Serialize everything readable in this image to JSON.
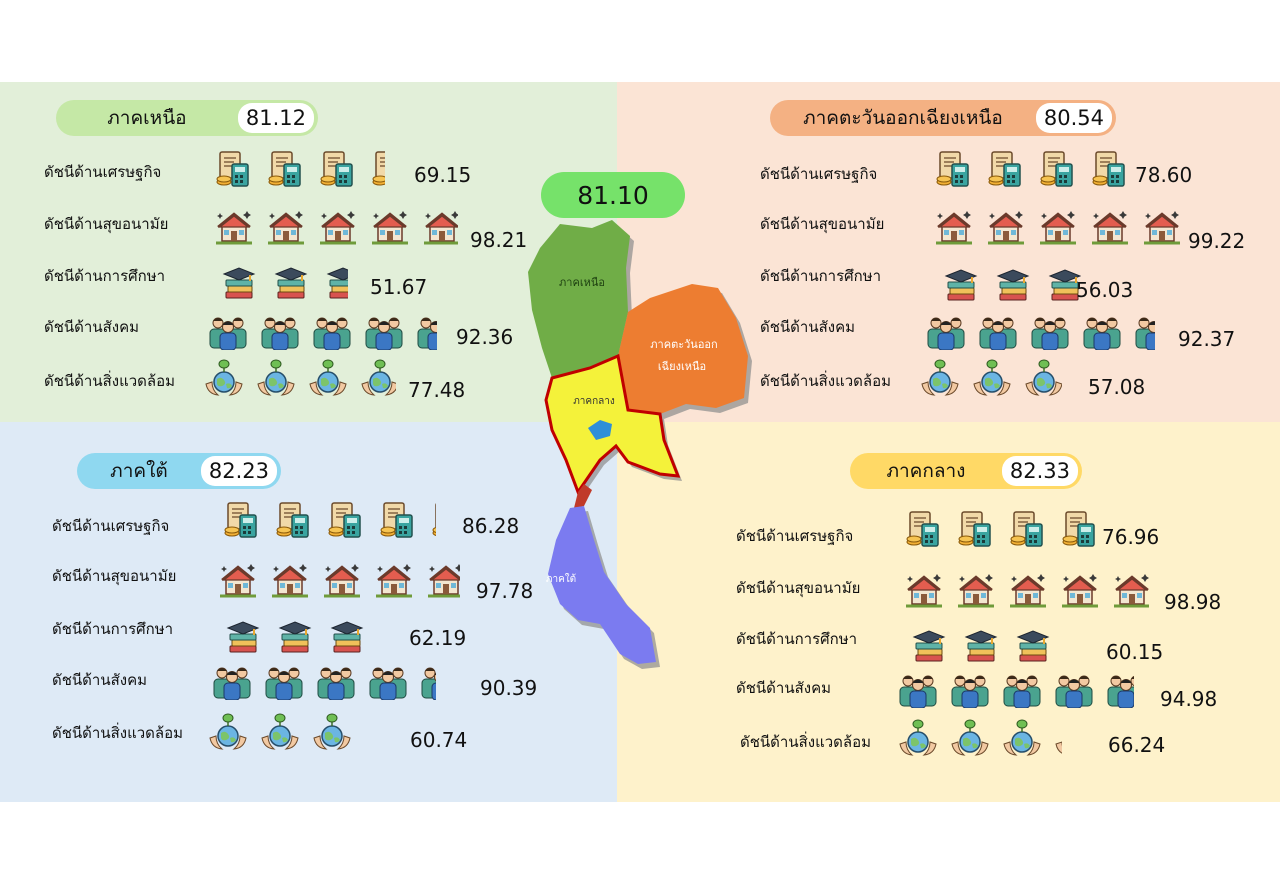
{
  "overall_score": "81.10",
  "regions": {
    "north": {
      "name": "ภาคเหนือ",
      "score": "81.12",
      "pill_color": "#c5e8a6",
      "rows": [
        {
          "label": "ดัชนีด้านเศรษฐกิจ",
          "icon": "finance-icon",
          "value": "69.15",
          "level": 0.6915
        },
        {
          "label": "ดัชนีด้านสุขอนามัย",
          "icon": "house-icon",
          "value": "98.21",
          "level": 0.9821
        },
        {
          "label": "ดัชนีด้านการศึกษา",
          "icon": "education-icon",
          "value": "51.67",
          "level": 0.5167
        },
        {
          "label": "ดัชนีด้านสังคม",
          "icon": "people-icon",
          "value": "92.36",
          "level": 0.9236
        },
        {
          "label": "ดัชนีด้านสิ่งแวดล้อม",
          "icon": "environment-icon",
          "value": "77.48",
          "level": 0.7748
        }
      ]
    },
    "northeast": {
      "name": "ภาคตะวันออกเฉียงเหนือ",
      "score": "80.54",
      "pill_color": "#f4b183",
      "rows": [
        {
          "label": "ดัชนีด้านเศรษฐกิจ",
          "icon": "finance-icon",
          "value": "78.60",
          "level": 0.786
        },
        {
          "label": "ดัชนีด้านสุขอนามัย",
          "icon": "house-icon",
          "value": "99.22",
          "level": 0.9922
        },
        {
          "label": "ดัชนีด้านการศึกษา",
          "icon": "education-icon",
          "value": "56.03",
          "level": 0.5603
        },
        {
          "label": "ดัชนีด้านสังคม",
          "icon": "people-icon",
          "value": "92.37",
          "level": 0.9237
        },
        {
          "label": "ดัชนีด้านสิ่งแวดล้อม",
          "icon": "environment-icon",
          "value": "57.08",
          "level": 0.5708
        }
      ]
    },
    "south": {
      "name": "ภาคใต้",
      "score": "82.23",
      "pill_color": "#8fd8f0",
      "rows": [
        {
          "label": "ดัชนีด้านเศรษฐกิจ",
          "icon": "finance-icon",
          "value": "86.28",
          "level": 0.8628
        },
        {
          "label": "ดัชนีด้านสุขอนามัย",
          "icon": "house-icon",
          "value": "97.78",
          "level": 0.9778
        },
        {
          "label": "ดัชนีด้านการศึกษา",
          "icon": "education-icon",
          "value": "62.19",
          "level": 0.6219
        },
        {
          "label": "ดัชนีด้านสังคม",
          "icon": "people-icon",
          "value": "90.39",
          "level": 0.9039
        },
        {
          "label": "ดัชนีด้านสิ่งแวดล้อม",
          "icon": "environment-icon",
          "value": "60.74",
          "level": 0.6074
        }
      ]
    },
    "central": {
      "name": "ภาคกลาง",
      "score": "82.33",
      "pill_color": "#ffd966",
      "rows": [
        {
          "label": "ดัชนีด้านเศรษฐกิจ",
          "icon": "finance-icon",
          "value": "76.96",
          "level": 0.7696
        },
        {
          "label": "ดัชนีด้านสุขอนามัย",
          "icon": "house-icon",
          "value": "98.98",
          "level": 0.9898
        },
        {
          "label": "ดัชนีด้านการศึกษา",
          "icon": "education-icon",
          "value": "60.15",
          "level": 0.6015
        },
        {
          "label": "ดัชนีด้านสังคม",
          "icon": "people-icon",
          "value": "94.98",
          "level": 0.9498
        },
        {
          "label": "ดัชนีด้านสิ่งแวดล้อม",
          "icon": "environment-icon",
          "value": "66.24",
          "level": 0.6624
        }
      ]
    }
  },
  "map_labels": {
    "north": "ภาคเหนือ",
    "northeast_line1": "ภาคตะวันออก",
    "northeast_line2": "เฉียงเหนือ",
    "central": "ภาคกลาง",
    "south": "ภาคใต้"
  },
  "map_colors": {
    "north": "#70ad47",
    "northeast": "#ed7d31",
    "central": "#f4f23a",
    "south": "#7b7bf0",
    "border": "#c00000"
  }
}
